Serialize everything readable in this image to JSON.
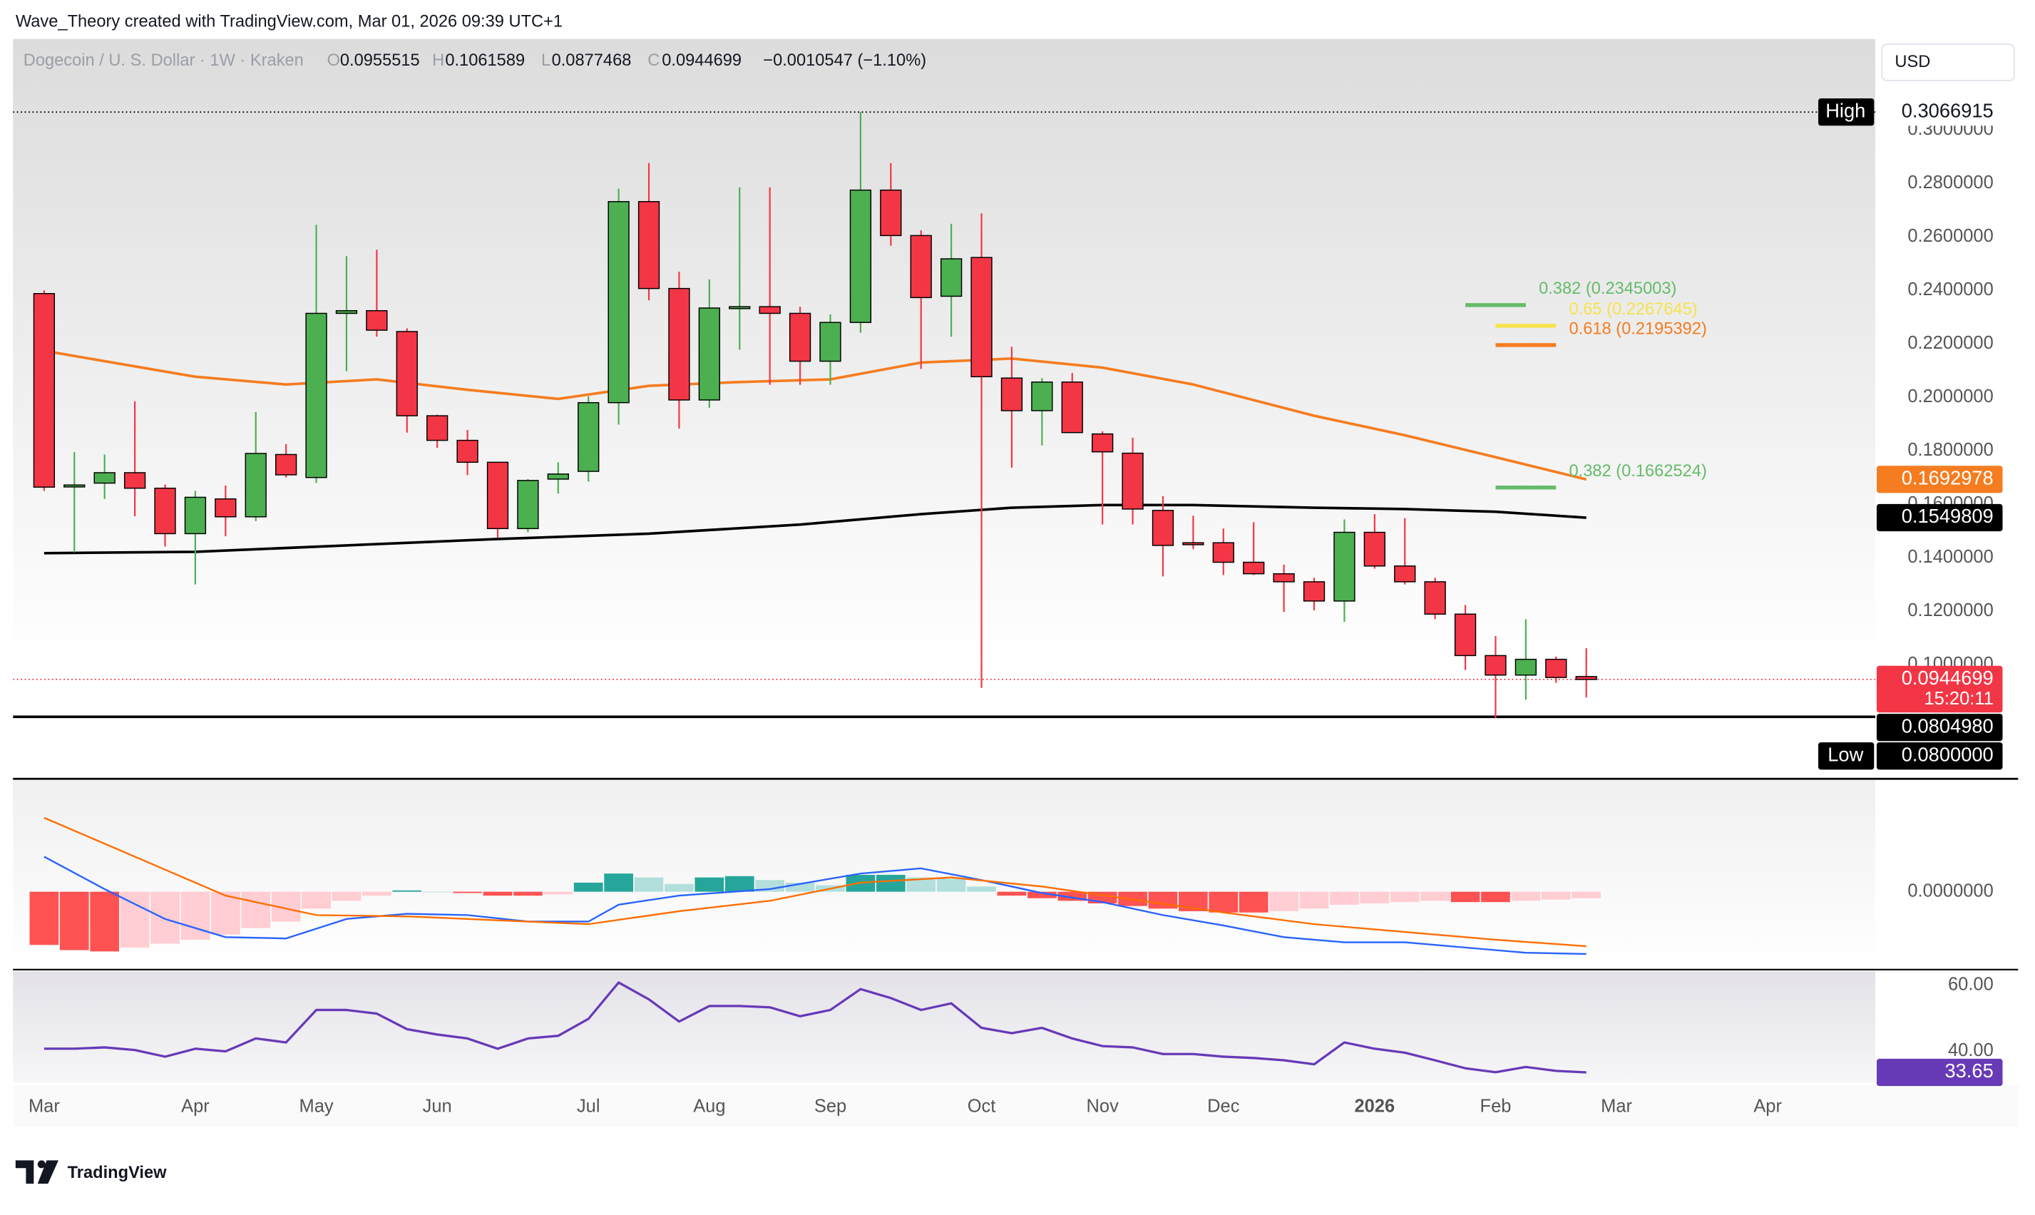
{
  "header": {
    "attribution": "Wave_Theory created with TradingView.com, Mar 01, 2026 09:39 UTC+1"
  },
  "footer": {
    "logo": "TradingView"
  },
  "chart_data": [
    {
      "type": "candlestick",
      "title": "Dogecoin / U. S. Dollar · 1W · Kraken",
      "ohlc_labels": [
        "O",
        "H",
        "L",
        "C"
      ],
      "change": "−0.0010547 (−1.10%)",
      "currency": "USD",
      "x": [
        0,
        1,
        2,
        3,
        4,
        5,
        6,
        7,
        8,
        9,
        10,
        11,
        12,
        13,
        14,
        15,
        16,
        17,
        18,
        19,
        20,
        21,
        22,
        23,
        24,
        25,
        26,
        27,
        28,
        29,
        30,
        31,
        32,
        33,
        34,
        35,
        36,
        37,
        38,
        39,
        40,
        41,
        42,
        43,
        44,
        45,
        46,
        47,
        48,
        49,
        50,
        51
      ],
      "open": [
        0.2388,
        0.167,
        0.1679,
        0.1718,
        0.166,
        0.149,
        0.162,
        0.1553,
        0.1786,
        0.17,
        0.2314,
        0.2324,
        0.2246,
        0.1931,
        0.1839,
        0.1757,
        0.1509,
        0.1694,
        0.1723,
        0.198,
        0.2732,
        0.2407,
        0.199,
        0.2334,
        0.2339,
        0.2314,
        0.2135,
        0.228,
        0.2775,
        0.2605,
        0.2378,
        0.2523,
        0.2072,
        0.195,
        0.2057,
        0.1863,
        0.1791,
        0.1577,
        0.1456,
        0.1456,
        0.1383,
        0.134,
        0.131,
        0.1238,
        0.1495,
        0.1369,
        0.131,
        0.1189,
        0.1034,
        0.0961,
        0.102,
        0.0955515
      ],
      "high": [
        0.24,
        0.1795,
        0.1786,
        0.1985,
        0.1674,
        0.165,
        0.167,
        0.1945,
        0.1825,
        0.2645,
        0.2528,
        0.2552,
        0.2258,
        0.1935,
        0.1878,
        0.1757,
        0.1694,
        0.1757,
        0.2004,
        0.278,
        0.2876,
        0.247,
        0.2441,
        0.2785,
        0.2785,
        0.2339,
        0.231,
        0.3066915,
        0.2876,
        0.2625,
        0.2649,
        0.2688,
        0.2189,
        0.2072,
        0.2091,
        0.1873,
        0.1849,
        0.1631,
        0.1557,
        0.1509,
        0.1533,
        0.1374,
        0.1325,
        0.1543,
        0.1563,
        0.1548,
        0.1325,
        0.1223,
        0.1107,
        0.117,
        0.103,
        0.1061589
      ],
      "low": [
        0.165,
        0.142,
        0.162,
        0.1555,
        0.1442,
        0.13,
        0.148,
        0.1537,
        0.17,
        0.168,
        0.2098,
        0.2227,
        0.1868,
        0.1811,
        0.1709,
        0.1475,
        0.1495,
        0.164,
        0.1685,
        0.1898,
        0.2363,
        0.1883,
        0.1961,
        0.2178,
        0.2047,
        0.2047,
        0.2047,
        0.2242,
        0.2567,
        0.2106,
        0.2227,
        0.0913,
        0.1737,
        0.182,
        0.1868,
        0.1524,
        0.1524,
        0.133,
        0.1432,
        0.1335,
        0.1335,
        0.1197,
        0.1203,
        0.116,
        0.1359,
        0.13,
        0.117,
        0.098,
        0.08,
        0.0869,
        0.0932,
        0.0877468
      ],
      "close": [
        0.1664,
        0.1672,
        0.1718,
        0.166,
        0.149,
        0.1626,
        0.1553,
        0.179,
        0.171,
        0.2314,
        0.2324,
        0.2251,
        0.1931,
        0.1839,
        0.1757,
        0.1509,
        0.1689,
        0.1713,
        0.198,
        0.2732,
        0.2407,
        0.199,
        0.2334,
        0.2339,
        0.2314,
        0.2135,
        0.228,
        0.2775,
        0.2605,
        0.2373,
        0.2518,
        0.2077,
        0.195,
        0.2057,
        0.1868,
        0.1796,
        0.1582,
        0.1446,
        0.1451,
        0.1383,
        0.134,
        0.131,
        0.1238,
        0.1495,
        0.1369,
        0.131,
        0.1189,
        0.1034,
        0.0961,
        0.102,
        0.0952,
        0.0944699
      ],
      "up_color": "#4caf50",
      "down_color": "#f23645",
      "border_color": "#000000",
      "xlim": [
        -1.03,
        60.56
      ],
      "xticks": [
        {
          "value": 0,
          "label": "Mar"
        },
        {
          "value": 5,
          "label": "Apr"
        },
        {
          "value": 9,
          "label": "May"
        },
        {
          "value": 13,
          "label": "Jun"
        },
        {
          "value": 18,
          "label": "Jul"
        },
        {
          "value": 22,
          "label": "Aug"
        },
        {
          "value": 26,
          "label": "Sep"
        },
        {
          "value": 31,
          "label": "Oct"
        },
        {
          "value": 35,
          "label": "Nov"
        },
        {
          "value": 39,
          "label": "Dec"
        },
        {
          "value": 44,
          "label": "2026",
          "bold": true
        },
        {
          "value": 48,
          "label": "Feb"
        },
        {
          "value": 52,
          "label": "Mar"
        },
        {
          "value": 57,
          "label": "Apr"
        }
      ],
      "ylim": [
        0.0573,
        0.334
      ],
      "yticks": [
        {
          "value": 0.3,
          "label": "0.3000000"
        },
        {
          "value": 0.28,
          "label": "0.2800000"
        },
        {
          "value": 0.26,
          "label": "0.2600000"
        },
        {
          "value": 0.24,
          "label": "0.2400000"
        },
        {
          "value": 0.22,
          "label": "0.2200000"
        },
        {
          "value": 0.2,
          "label": "0.2000000"
        },
        {
          "value": 0.18,
          "label": "0.1800000"
        },
        {
          "value": 0.16,
          "label": "0.1600000"
        },
        {
          "value": 0.14,
          "label": "0.1400000"
        },
        {
          "value": 0.12,
          "label": "0.1200000"
        },
        {
          "value": 0.1,
          "label": "0.1000000"
        }
      ],
      "overlays": [
        {
          "color": "#f57c1f",
          "x": [
            0,
            5,
            8,
            11,
            14,
            17,
            20,
            23,
            26,
            29,
            32,
            35,
            38,
            42,
            45,
            48,
            51
          ],
          "values": [
            0.2174,
            0.2077,
            0.2048,
            0.2067,
            0.2028,
            0.1994,
            0.2043,
            0.2057,
            0.2067,
            0.213,
            0.2145,
            0.2111,
            0.2048,
            0.1931,
            0.1858,
            0.1776,
            0.1692978
          ]
        },
        {
          "color": "#000000",
          "x": [
            0,
            5,
            10,
            15,
            20,
            25,
            29,
            32,
            35,
            38,
            42,
            45,
            48,
            51
          ],
          "values": [
            0.1417,
            0.1422,
            0.1446,
            0.147,
            0.149,
            0.1524,
            0.1563,
            0.1587,
            0.1597,
            0.1597,
            0.1587,
            0.1582,
            0.1572,
            0.1549809
          ]
        }
      ],
      "fibs": [
        {
          "text": "0.382 (0.2345003)",
          "value": 0.2345003,
          "color": "#66bb6a",
          "x": [
            47,
            49
          ]
        },
        {
          "text": "0.65 (0.2267645)",
          "value": 0.2267645,
          "color": "#f7e34a",
          "x": [
            48,
            50
          ]
        },
        {
          "text": "0.618 (0.2195392)",
          "value": 0.2195392,
          "color": "#f57c1f",
          "x": [
            48,
            50
          ]
        },
        {
          "text": "0.382 (0.1662524)",
          "value": 0.1662524,
          "color": "#66bb6a",
          "x": [
            48,
            50
          ]
        }
      ],
      "tags": [
        {
          "text": "High",
          "value": 0.3066915,
          "label": "0.3066915",
          "bg": "#ffffff",
          "fg": "#131722",
          "line": "dotted",
          "line_color": "#000000"
        },
        {
          "value": 0.1692978,
          "label": "0.1692978",
          "bg": "#f57c1f",
          "fg": "#ffffff"
        },
        {
          "value": 0.1549809,
          "label": "0.1549809",
          "bg": "#000000",
          "fg": "#ffffff"
        },
        {
          "value": 0.0944699,
          "label": "0.0944699",
          "countdown": "15:20:11",
          "bg": "#f23645",
          "fg": "#ffffff",
          "line": "dotted",
          "line_color": "#f23645"
        },
        {
          "value": 0.080498,
          "label": "0.0804980",
          "bg": "#000000",
          "fg": "#ffffff",
          "line": "solid",
          "line_color": "#000000"
        },
        {
          "text": "Low",
          "value": 0.08,
          "label": "0.0800000",
          "bg": "#000000",
          "fg": "#ffffff"
        }
      ]
    },
    {
      "type": "macd",
      "x": [
        0,
        1,
        2,
        3,
        4,
        5,
        6,
        7,
        8,
        9,
        10,
        11,
        12,
        13,
        14,
        15,
        16,
        17,
        18,
        19,
        20,
        21,
        22,
        23,
        24,
        25,
        26,
        27,
        28,
        29,
        30,
        31,
        32,
        33,
        34,
        35,
        36,
        37,
        38,
        39,
        40,
        41,
        42,
        43,
        44,
        45,
        46,
        47,
        48,
        49,
        50,
        51
      ],
      "histogram": [
        -0.0205,
        -0.0225,
        -0.023,
        -0.0215,
        -0.02,
        -0.0185,
        -0.0165,
        -0.014,
        -0.0115,
        -0.0065,
        -0.0035,
        -0.0015,
        0.0005,
        0,
        -0.0005,
        -0.0015,
        -0.0015,
        -0.001,
        0.0035,
        0.007,
        0.0055,
        0.003,
        0.0055,
        0.006,
        0.0045,
        0.0035,
        0.0025,
        0.0065,
        0.0065,
        0.0055,
        0.005,
        0.002,
        -0.0015,
        -0.0025,
        -0.0035,
        -0.0045,
        -0.0055,
        -0.0065,
        -0.0075,
        -0.008,
        -0.008,
        -0.0075,
        -0.0065,
        -0.005,
        -0.0045,
        -0.004,
        -0.0035,
        -0.004,
        -0.004,
        -0.0035,
        -0.003,
        -0.0025
      ],
      "hist_colors": {
        "pos_up": "#26a69a",
        "pos_down": "#b2dfdb",
        "neg_down": "#ff5252",
        "neg_up": "#ffcdd2"
      },
      "lines": [
        {
          "color": "#2962ff",
          "x": [
            0,
            2,
            4,
            6,
            8,
            10,
            12,
            14,
            16,
            18,
            19,
            21,
            24,
            27,
            29,
            31,
            33,
            35,
            37,
            39,
            41,
            43,
            45,
            47,
            49,
            51
          ],
          "values": [
            0.0135,
            0.001,
            -0.0105,
            -0.0175,
            -0.018,
            -0.0105,
            -0.0085,
            -0.009,
            -0.0115,
            -0.0115,
            -0.005,
            -0.0015,
            0.001,
            0.007,
            0.009,
            0.0045,
            -0.0005,
            -0.004,
            -0.009,
            -0.013,
            -0.0175,
            -0.0195,
            -0.0195,
            -0.0215,
            -0.0235,
            -0.024
          ]
        },
        {
          "color": "#ff6d00",
          "x": [
            0,
            3,
            6,
            9,
            12,
            15,
            18,
            21,
            24,
            27,
            30,
            33,
            36,
            39,
            42,
            45,
            48,
            51
          ],
          "values": [
            0.0285,
            0.0135,
            -0.0015,
            -0.009,
            -0.0095,
            -0.011,
            -0.0125,
            -0.0075,
            -0.0035,
            0.0035,
            0.0055,
            0.002,
            -0.003,
            -0.008,
            -0.0125,
            -0.0155,
            -0.0185,
            -0.021
          ]
        }
      ],
      "xlim": [
        -1.03,
        60.56
      ],
      "ylim": [
        -0.029,
        0.041
      ],
      "yticks": [
        {
          "value": 0,
          "label": "0.0000000"
        }
      ]
    },
    {
      "type": "line",
      "x": [
        0,
        1,
        2,
        3,
        4,
        5,
        6,
        7,
        8,
        9,
        10,
        11,
        12,
        13,
        14,
        15,
        16,
        17,
        18,
        19,
        20,
        21,
        22,
        23,
        24,
        25,
        26,
        27,
        28,
        29,
        30,
        31,
        32,
        33,
        34,
        35,
        36,
        37,
        38,
        39,
        40,
        41,
        42,
        43,
        44,
        45,
        46,
        47,
        48,
        49,
        50,
        51
      ],
      "values": [
        40.8,
        40.8,
        41.2,
        40.4,
        38.4,
        40.8,
        40.0,
        43.9,
        42.7,
        52.5,
        52.5,
        51.4,
        46.7,
        45.1,
        43.9,
        40.8,
        43.9,
        44.7,
        49.8,
        60.8,
        55.7,
        49.0,
        53.7,
        53.7,
        53.3,
        50.6,
        52.5,
        58.8,
        56.1,
        52.5,
        54.5,
        47.1,
        45.5,
        47.1,
        43.9,
        41.6,
        41.2,
        39.2,
        39.2,
        38.4,
        38.0,
        37.3,
        36.1,
        42.7,
        40.8,
        39.6,
        37.3,
        34.9,
        33.7,
        35.3,
        34.1,
        33.65
      ],
      "color": "#673ab7",
      "xlim": [
        -1.03,
        60.56
      ],
      "ylim": [
        30.6,
        64.3
      ],
      "yticks": [
        {
          "value": 60,
          "label": "60.00"
        },
        {
          "value": 40,
          "label": "40.00"
        }
      ],
      "tags": [
        {
          "value": 33.65,
          "label": "33.65",
          "bg": "#673ab7",
          "fg": "#ffffff"
        }
      ]
    }
  ]
}
